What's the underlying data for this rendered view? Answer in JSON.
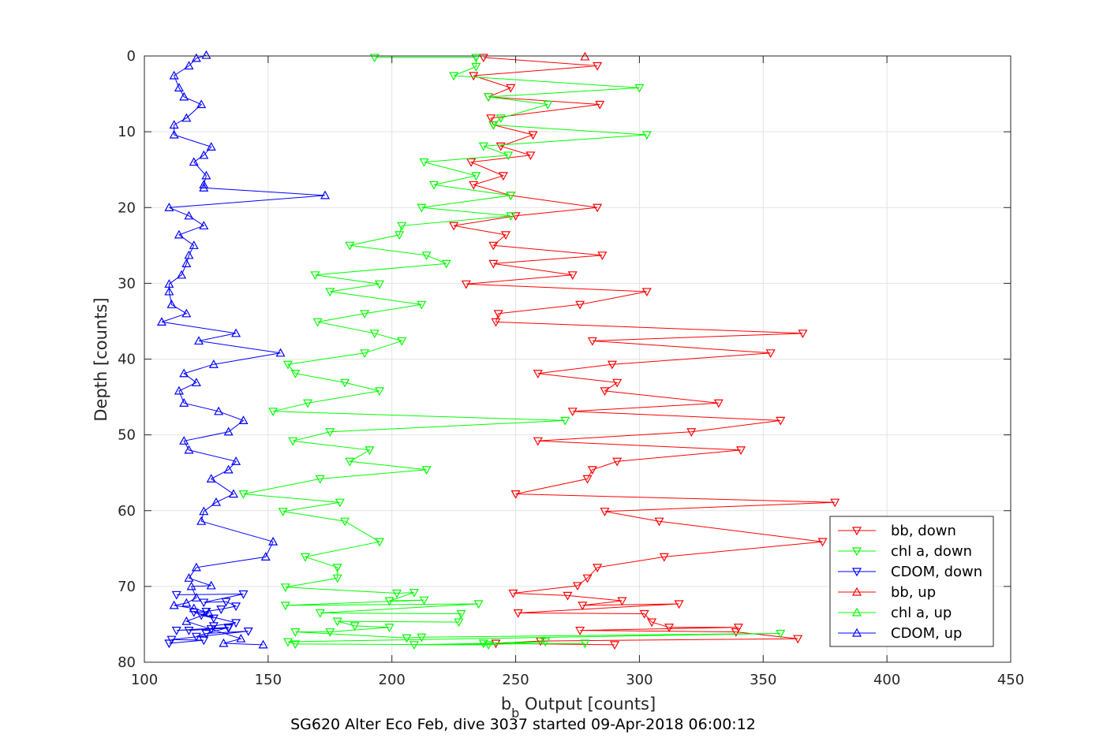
{
  "chart_data": {
    "type": "line",
    "title": "",
    "caption": "SG620 Alter Eco Feb, dive 3037 started 09-Apr-2018 06:00:12",
    "xlabel_main": "b",
    "xlabel_sub": "b",
    "xlabel_rest": " Output [counts]",
    "ylabel": "Depth [counts]",
    "xlim": [
      100,
      450
    ],
    "ylim": [
      0,
      80
    ],
    "y_reversed": true,
    "x_ticks": [
      "100",
      "150",
      "200",
      "250",
      "300",
      "350",
      "400",
      "450"
    ],
    "y_ticks": [
      "0",
      "10",
      "20",
      "30",
      "40",
      "50",
      "60",
      "70",
      "80"
    ],
    "grid": true,
    "legend_position": "bottom-right",
    "series": [
      {
        "name": "bb, down",
        "color": "#ff0000",
        "marker": "triangle-down",
        "x": [
          237,
          283,
          233,
          248,
          239,
          284,
          240,
          241,
          257,
          244,
          256,
          232,
          245,
          233,
          248,
          283,
          250,
          225,
          246,
          241,
          285,
          241,
          273,
          230,
          303,
          276,
          243,
          242,
          366,
          281,
          353,
          289,
          259,
          291,
          286,
          332,
          273,
          357,
          321,
          259,
          341,
          291,
          281,
          279,
          250,
          379,
          286,
          308,
          374,
          310,
          283,
          279,
          275,
          249,
          271,
          293,
          277,
          316,
          251,
          302,
          305,
          312,
          340,
          276,
          339,
          364,
          260,
          242,
          290
        ],
        "y": [
          0.2,
          1.3,
          2.6,
          4.2,
          5.4,
          6.4,
          8.2,
          9.1,
          10.4,
          11.9,
          13.1,
          14.0,
          15.8,
          17.0,
          18.4,
          20.0,
          21.1,
          22.4,
          23.6,
          25.0,
          26.3,
          27.4,
          28.9,
          30.1,
          31.1,
          32.8,
          34.0,
          35.1,
          36.6,
          37.6,
          39.2,
          40.7,
          41.9,
          43.1,
          44.2,
          45.8,
          46.9,
          48.1,
          49.6,
          50.8,
          52.0,
          53.5,
          54.6,
          55.8,
          57.8,
          58.9,
          60.1,
          61.4,
          64.1,
          66.1,
          67.5,
          68.9,
          69.9,
          70.9,
          71.2,
          71.9,
          72.5,
          72.3,
          73.5,
          73.6,
          74.7,
          75.4,
          75.4,
          75.8,
          76.0,
          76.9,
          77.2,
          77.5,
          77.7
        ]
      },
      {
        "name": "chl a, down",
        "color": "#00ff00",
        "marker": "triangle-down",
        "x": [
          193,
          234,
          234,
          225,
          300,
          239,
          263,
          244,
          241,
          303,
          237,
          247,
          213,
          234,
          217,
          248,
          212,
          248,
          204,
          203,
          183,
          214,
          222,
          169,
          195,
          175,
          212,
          189,
          170,
          193,
          204,
          189,
          158,
          161,
          181,
          195,
          166,
          152,
          270,
          175,
          160,
          191,
          183,
          214,
          171,
          140,
          179,
          156,
          181,
          195,
          165,
          178,
          178,
          157,
          202,
          209,
          199,
          213,
          157,
          235,
          171,
          228,
          227,
          178,
          185,
          199,
          175,
          161,
          206,
          212,
          357,
          158,
          161,
          239,
          262,
          237,
          209,
          278
        ],
        "y": [
          0.2,
          0.2,
          1.4,
          2.6,
          4.2,
          5.4,
          6.4,
          8.2,
          9.1,
          10.4,
          11.9,
          13.1,
          14.0,
          15.8,
          17.0,
          18.4,
          20.0,
          21.1,
          22.4,
          23.6,
          25.0,
          26.3,
          27.4,
          28.9,
          30.1,
          31.1,
          32.8,
          34.0,
          35.1,
          36.6,
          37.6,
          39.2,
          40.7,
          41.9,
          43.1,
          44.2,
          45.8,
          46.9,
          48.1,
          49.6,
          50.8,
          52.0,
          53.5,
          54.6,
          55.8,
          57.8,
          58.9,
          60.1,
          61.4,
          64.1,
          66.1,
          67.5,
          68.9,
          70.1,
          70.9,
          70.8,
          71.9,
          71.8,
          72.5,
          72.3,
          73.5,
          73.6,
          74.7,
          74.6,
          75.2,
          75.4,
          76.0,
          76.0,
          76.8,
          76.7,
          76.2,
          77.3,
          77.6,
          77.7,
          77.3,
          77.5,
          77.7,
          77.5
        ]
      },
      {
        "name": "CDOM, down",
        "color": "#0000ff",
        "marker": "triangle-down",
        "x": [
          113,
          140,
          124,
          133,
          137,
          131,
          125,
          123,
          128,
          120,
          137,
          128,
          127,
          118,
          134,
          113,
          134,
          121,
          125,
          142,
          111,
          124,
          110
        ],
        "y": [
          71.1,
          71.0,
          72.1,
          72.0,
          72.6,
          73.0,
          73.3,
          73.8,
          74.2,
          73.4,
          74.8,
          75.2,
          75.6,
          75.8,
          75.5,
          75.8,
          75.4,
          76.6,
          76.2,
          75.9,
          77.0,
          77.1,
          77.5
        ]
      },
      {
        "name": "bb, up",
        "color": "#ff0000",
        "marker": "triangle-up",
        "x": [
          278
        ],
        "y": [
          0.1
        ]
      },
      {
        "name": "chl a, up",
        "color": "#00ff00",
        "marker": "triangle-up",
        "x": [],
        "y": []
      },
      {
        "name": "CDOM, up",
        "color": "#0000ff",
        "marker": "triangle-up",
        "x": [
          125,
          121,
          118,
          112,
          114,
          116,
          123,
          117,
          112,
          112,
          127,
          124,
          120,
          125,
          124,
          124,
          173,
          110,
          118,
          124,
          114,
          120,
          118,
          117,
          115,
          110,
          110,
          111,
          117,
          107,
          137,
          122,
          155,
          128,
          116,
          121,
          114,
          116,
          130,
          140,
          134,
          116,
          118,
          137,
          134,
          127,
          136,
          129,
          124,
          123,
          152,
          149,
          121,
          118,
          127,
          119,
          121,
          117,
          112,
          120,
          126,
          117,
          139,
          132,
          148
        ],
        "y": [
          -0.1,
          0.3,
          1.3,
          2.6,
          4.2,
          5.4,
          6.4,
          8.2,
          9.1,
          10.4,
          12.0,
          13.1,
          14.0,
          15.8,
          17.0,
          17.4,
          18.4,
          20.0,
          21.1,
          22.4,
          23.6,
          25.0,
          26.3,
          27.4,
          28.9,
          30.1,
          31.1,
          32.8,
          34.0,
          35.1,
          36.6,
          37.6,
          39.2,
          40.7,
          41.9,
          43.1,
          44.2,
          45.8,
          46.9,
          48.1,
          49.6,
          50.8,
          52.0,
          53.5,
          54.6,
          55.8,
          57.8,
          58.9,
          60.1,
          61.4,
          64.1,
          66.1,
          67.5,
          68.9,
          69.9,
          70.0,
          71.5,
          72.2,
          72.5,
          72.9,
          73.5,
          74.6,
          76.9,
          77.5,
          77.7
        ]
      }
    ]
  }
}
